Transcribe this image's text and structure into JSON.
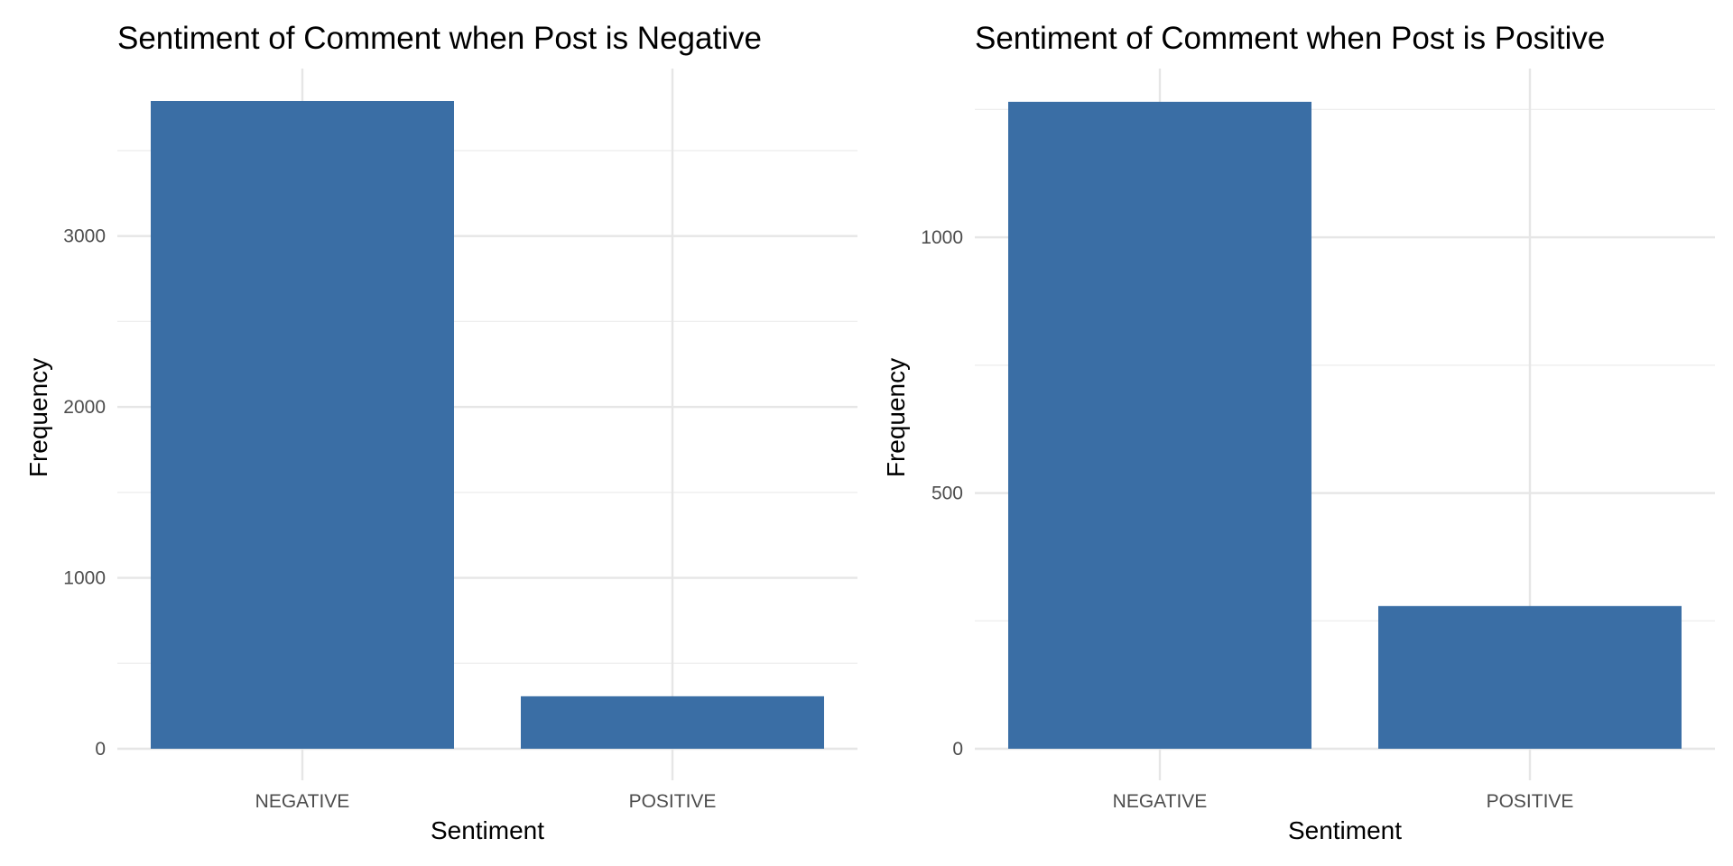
{
  "chart_data": [
    {
      "type": "bar",
      "title": "Sentiment of Comment when Post is Negative",
      "xlabel": "Sentiment",
      "ylabel": "Frequency",
      "categories": [
        "NEGATIVE",
        "POSITIVE"
      ],
      "values": [
        3790,
        307
      ],
      "ylim": [
        0,
        3980
      ],
      "yticks": [
        0,
        1000,
        2000,
        3000
      ],
      "ytick_labels": [
        "0",
        "1000",
        "2000",
        "3000"
      ],
      "grid": true,
      "bar_color": "#3a6ea5"
    },
    {
      "type": "bar",
      "title": "Sentiment of Comment when Post is Positive",
      "xlabel": "Sentiment",
      "ylabel": "Frequency",
      "categories": [
        "NEGATIVE",
        "POSITIVE"
      ],
      "values": [
        1265,
        279
      ],
      "ylim": [
        0,
        1330
      ],
      "yticks": [
        0,
        500,
        1000
      ],
      "ytick_labels": [
        "0",
        "500",
        "1000"
      ],
      "grid": true,
      "bar_color": "#3a6ea5"
    }
  ]
}
